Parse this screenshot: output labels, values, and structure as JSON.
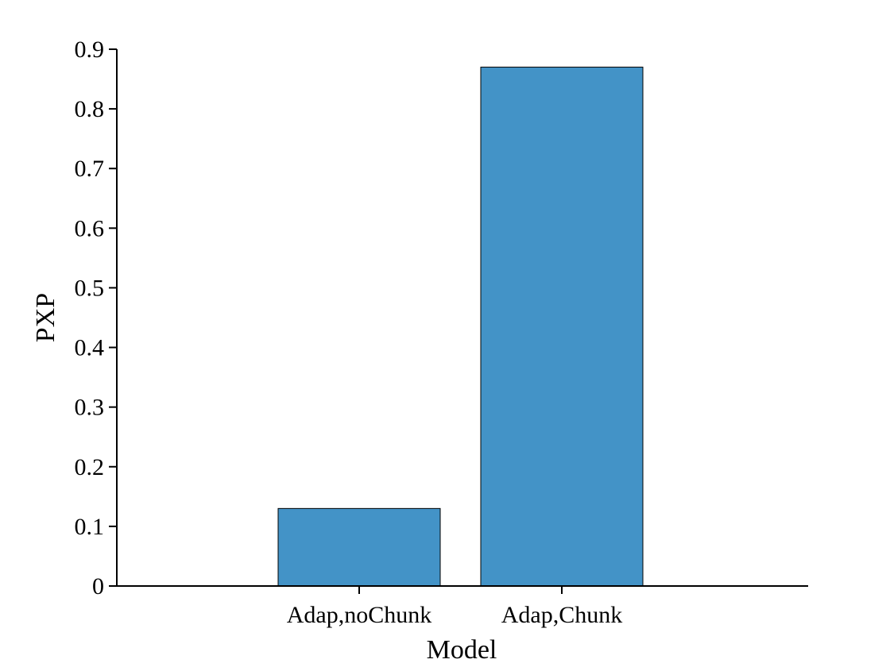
{
  "chart_data": {
    "type": "bar",
    "categories": [
      "Adap,noChunk",
      "Adap,Chunk"
    ],
    "values": [
      0.13,
      0.87
    ],
    "title": "",
    "xlabel": "Model",
    "ylabel": "PXP",
    "ylim": [
      0,
      0.9
    ],
    "yticks": [
      "0",
      "0.1",
      "0.2",
      "0.3",
      "0.4",
      "0.5",
      "0.6",
      "0.7",
      "0.8",
      "0.9"
    ],
    "grid": false,
    "bar_color": "#4393c7"
  }
}
